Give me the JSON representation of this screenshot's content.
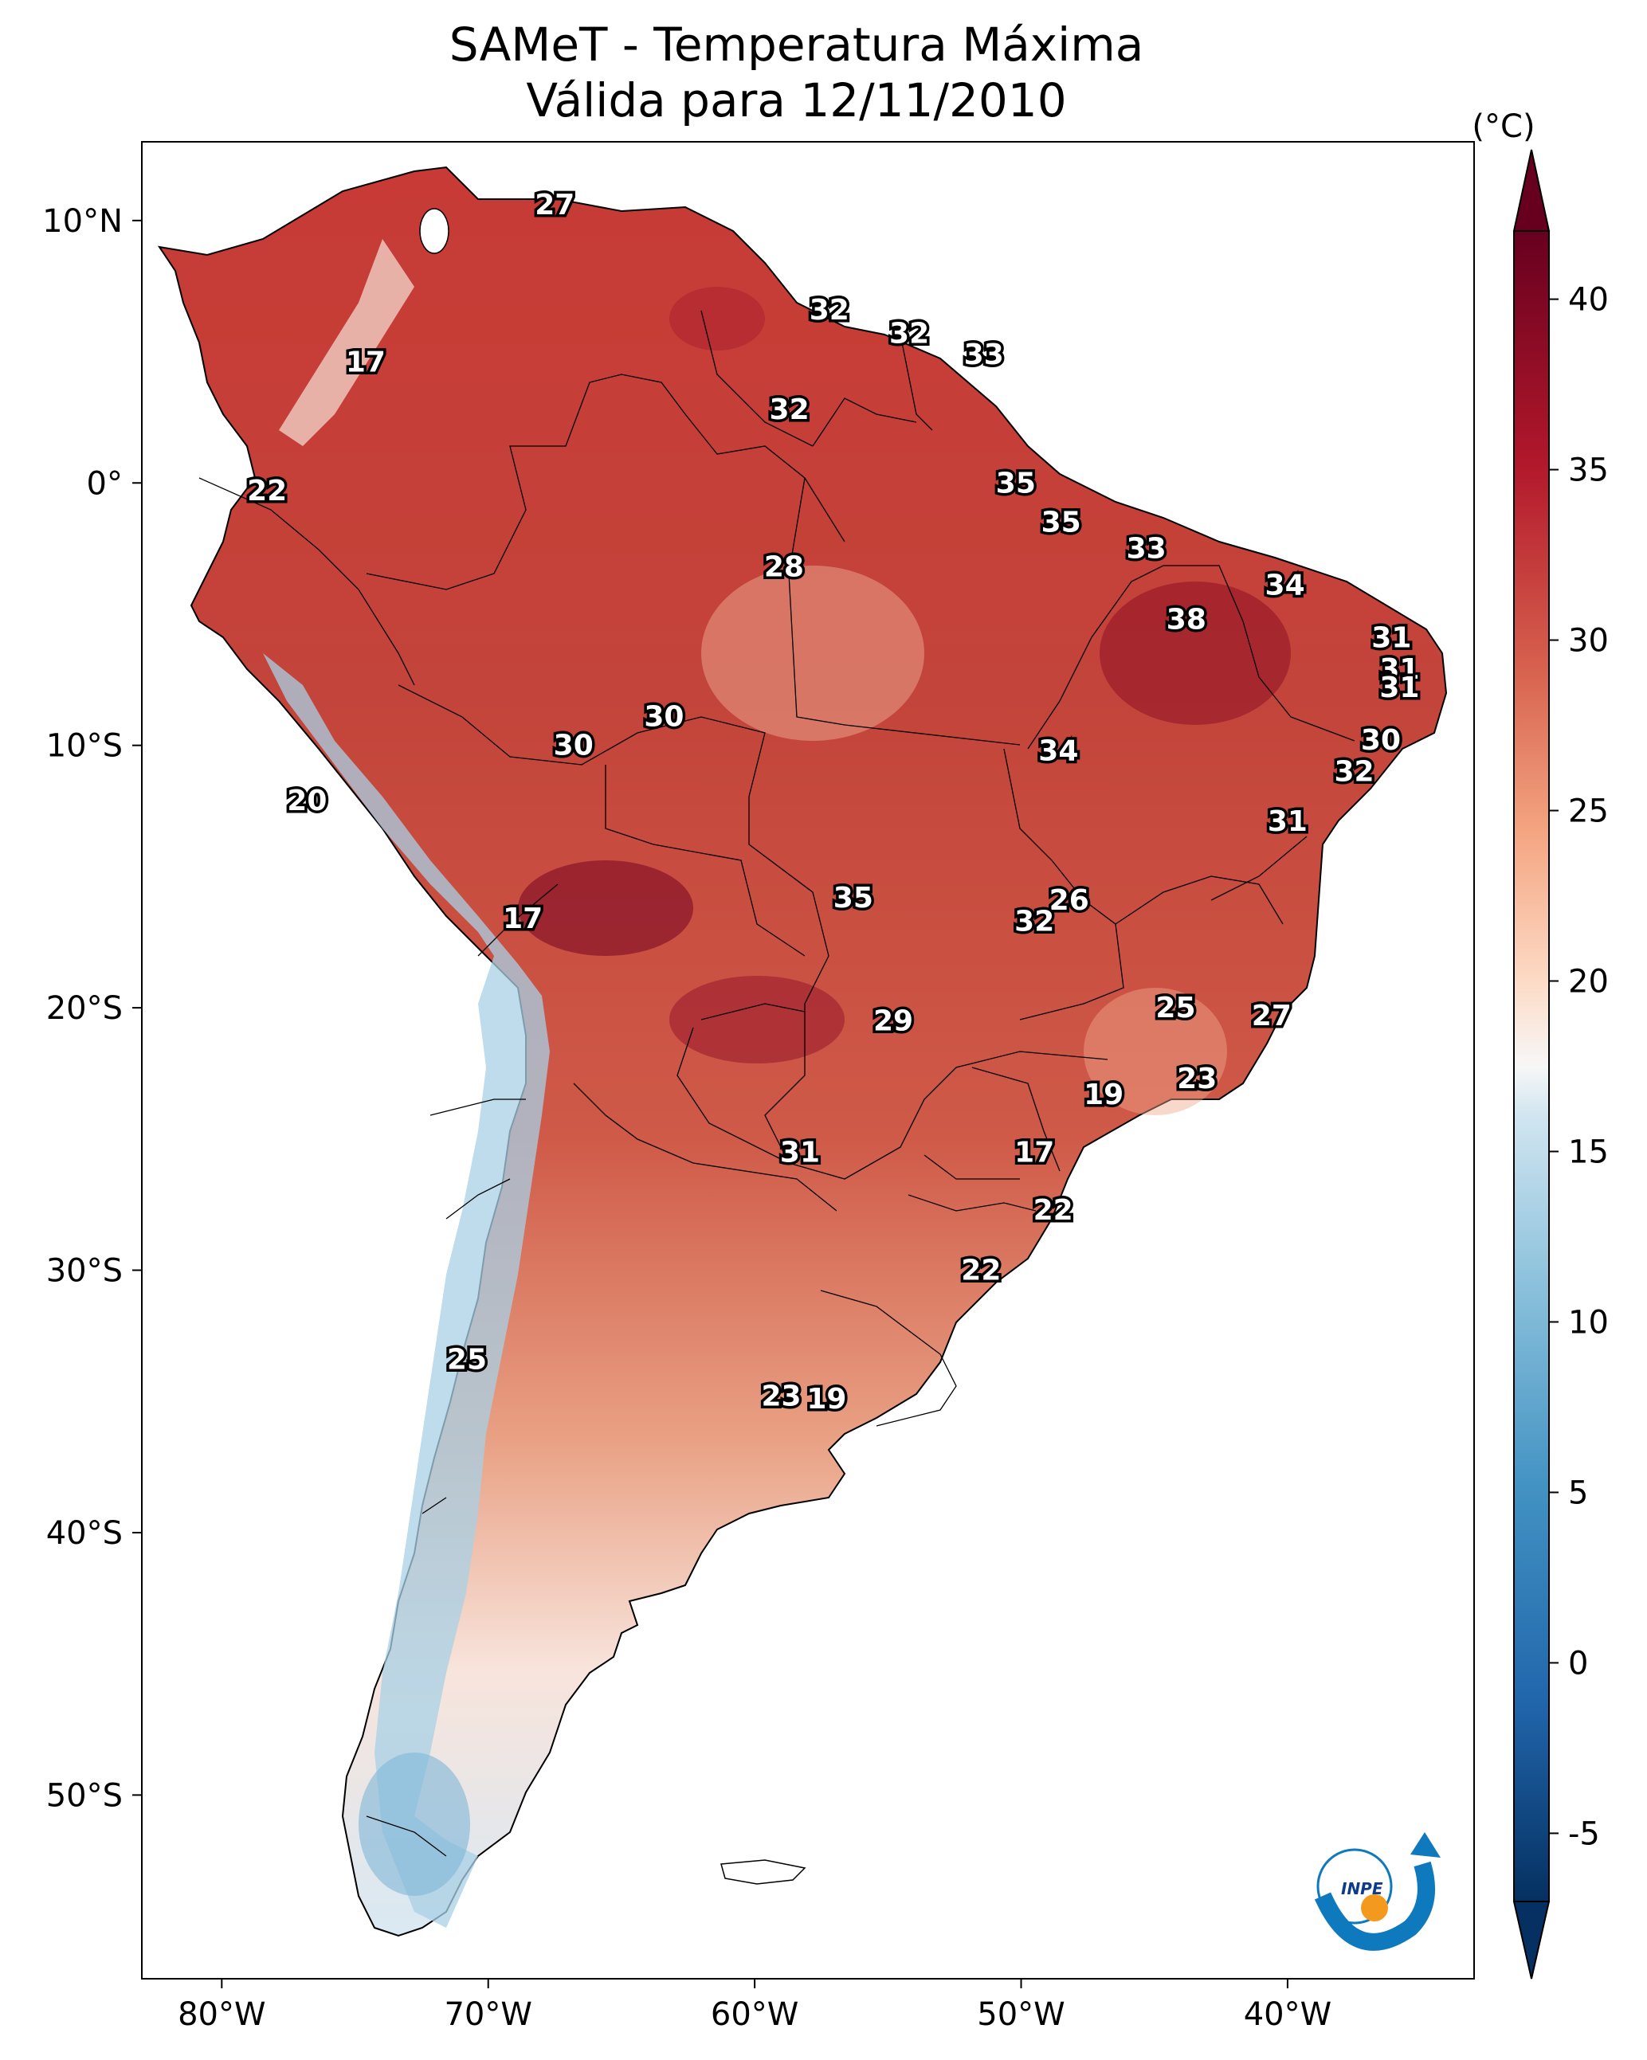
{
  "title": {
    "line1": "SAMeT - Temperatura Máxima",
    "line2": "Válida para 12/11/2010"
  },
  "map": {
    "region": "South America",
    "lon_range": [
      -83,
      -33
    ],
    "lat_range": [
      -57,
      13
    ],
    "lon_ticks": [
      "80°W",
      "70°W",
      "60°W",
      "50°W",
      "40°W"
    ],
    "lat_ticks": [
      "10°N",
      "0°",
      "10°S",
      "20°S",
      "30°S",
      "40°S",
      "50°S"
    ],
    "lon_tick_values": [
      -80,
      -70,
      -60,
      -50,
      -40
    ],
    "lat_tick_values": [
      10,
      0,
      -10,
      -20,
      -30,
      -40,
      -50
    ]
  },
  "colorbar": {
    "unit": "(°C)",
    "ticks": [
      "40",
      "35",
      "30",
      "25",
      "20",
      "15",
      "10",
      "5",
      "0",
      "-5"
    ],
    "tick_values": [
      40,
      35,
      30,
      25,
      20,
      15,
      10,
      5,
      0,
      -5
    ],
    "range": [
      -7,
      42
    ],
    "colormap": "RdBu_r",
    "colors": {
      "max": "#67001f",
      "high": "#b2182b",
      "warm": "#d6604d",
      "mild": "#f4a582",
      "neutral": "#f7f7f7",
      "cool": "#92c5de",
      "cold": "#4393c3",
      "min": "#053061"
    }
  },
  "contour_labels": [
    {
      "text": "27",
      "lon": -67.5,
      "lat": 10.6
    },
    {
      "text": "17",
      "lon": -74.6,
      "lat": 4.6
    },
    {
      "text": "32",
      "lon": -57.2,
      "lat": 6.6
    },
    {
      "text": "32",
      "lon": -54.2,
      "lat": 5.7
    },
    {
      "text": "33",
      "lon": -51.4,
      "lat": 4.9
    },
    {
      "text": "32",
      "lon": -58.7,
      "lat": 2.8
    },
    {
      "text": "22",
      "lon": -78.3,
      "lat": -0.3
    },
    {
      "text": "35",
      "lon": -50.2,
      "lat": 0.0
    },
    {
      "text": "35",
      "lon": -48.5,
      "lat": -1.5
    },
    {
      "text": "33",
      "lon": -45.3,
      "lat": -2.5
    },
    {
      "text": "28",
      "lon": -58.9,
      "lat": -3.2
    },
    {
      "text": "34",
      "lon": -40.1,
      "lat": -3.9
    },
    {
      "text": "38",
      "lon": -43.8,
      "lat": -5.2
    },
    {
      "text": "31",
      "lon": -36.1,
      "lat": -5.9
    },
    {
      "text": "31",
      "lon": -35.8,
      "lat": -7.1
    },
    {
      "text": "31",
      "lon": -35.8,
      "lat": -7.8
    },
    {
      "text": "30",
      "lon": -63.4,
      "lat": -8.9
    },
    {
      "text": "30",
      "lon": -66.8,
      "lat": -10.0
    },
    {
      "text": "34",
      "lon": -48.6,
      "lat": -10.2
    },
    {
      "text": "30",
      "lon": -36.5,
      "lat": -9.8
    },
    {
      "text": "32",
      "lon": -37.5,
      "lat": -11.0
    },
    {
      "text": "20",
      "lon": -76.8,
      "lat": -12.1
    },
    {
      "text": "31",
      "lon": -40.0,
      "lat": -12.9
    },
    {
      "text": "35",
      "lon": -56.3,
      "lat": -15.8
    },
    {
      "text": "26",
      "lon": -48.2,
      "lat": -15.9
    },
    {
      "text": "32",
      "lon": -49.5,
      "lat": -16.7
    },
    {
      "text": "17",
      "lon": -68.7,
      "lat": -16.6
    },
    {
      "text": "25",
      "lon": -44.2,
      "lat": -20.0
    },
    {
      "text": "27",
      "lon": -40.6,
      "lat": -20.3
    },
    {
      "text": "29",
      "lon": -54.8,
      "lat": -20.5
    },
    {
      "text": "23",
      "lon": -43.4,
      "lat": -22.7
    },
    {
      "text": "19",
      "lon": -46.9,
      "lat": -23.3
    },
    {
      "text": "31",
      "lon": -58.3,
      "lat": -25.5
    },
    {
      "text": "17",
      "lon": -49.5,
      "lat": -25.5
    },
    {
      "text": "22",
      "lon": -48.8,
      "lat": -27.7
    },
    {
      "text": "22",
      "lon": -51.5,
      "lat": -30.0
    },
    {
      "text": "25",
      "lon": -70.8,
      "lat": -33.4
    },
    {
      "text": "23",
      "lon": -59.0,
      "lat": -34.8
    },
    {
      "text": "19",
      "lon": -57.3,
      "lat": -34.9
    }
  ],
  "logo": {
    "text": "INPE"
  }
}
